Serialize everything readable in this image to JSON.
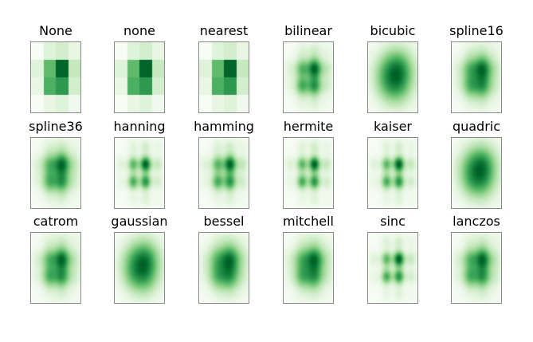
{
  "chart_data": {
    "type": "heatmap",
    "colormap": "Greens",
    "grid": {
      "rows": 3,
      "cols": 6
    },
    "image_values": [
      [
        0.0,
        0.15,
        0.2,
        0.1
      ],
      [
        0.15,
        0.55,
        0.9,
        0.25
      ],
      [
        0.1,
        0.6,
        0.7,
        0.2
      ],
      [
        0.0,
        0.1,
        0.15,
        0.05
      ]
    ],
    "panels": [
      {
        "title": "None",
        "method": "nearest"
      },
      {
        "title": "none",
        "method": "nearest"
      },
      {
        "title": "nearest",
        "method": "nearest"
      },
      {
        "title": "bilinear",
        "method": "smooth",
        "blur": 0.1
      },
      {
        "title": "bicubic",
        "method": "smooth",
        "blur": 0.17
      },
      {
        "title": "spline16",
        "method": "smooth",
        "blur": 0.12
      },
      {
        "title": "spline36",
        "method": "smooth",
        "blur": 0.11
      },
      {
        "title": "hanning",
        "method": "smooth",
        "blur": 0.08
      },
      {
        "title": "hamming",
        "method": "smooth",
        "blur": 0.09
      },
      {
        "title": "hermite",
        "method": "smooth",
        "blur": 0.08
      },
      {
        "title": "kaiser",
        "method": "smooth",
        "blur": 0.08
      },
      {
        "title": "quadric",
        "method": "smooth",
        "blur": 0.16
      },
      {
        "title": "catrom",
        "method": "smooth",
        "blur": 0.11
      },
      {
        "title": "gaussian",
        "method": "smooth",
        "blur": 0.16
      },
      {
        "title": "bessel",
        "method": "smooth",
        "blur": 0.13
      },
      {
        "title": "mitchell",
        "method": "smooth",
        "blur": 0.12
      },
      {
        "title": "sinc",
        "method": "smooth",
        "blur": 0.08
      },
      {
        "title": "lanczos",
        "method": "smooth",
        "blur": 0.11
      }
    ]
  }
}
